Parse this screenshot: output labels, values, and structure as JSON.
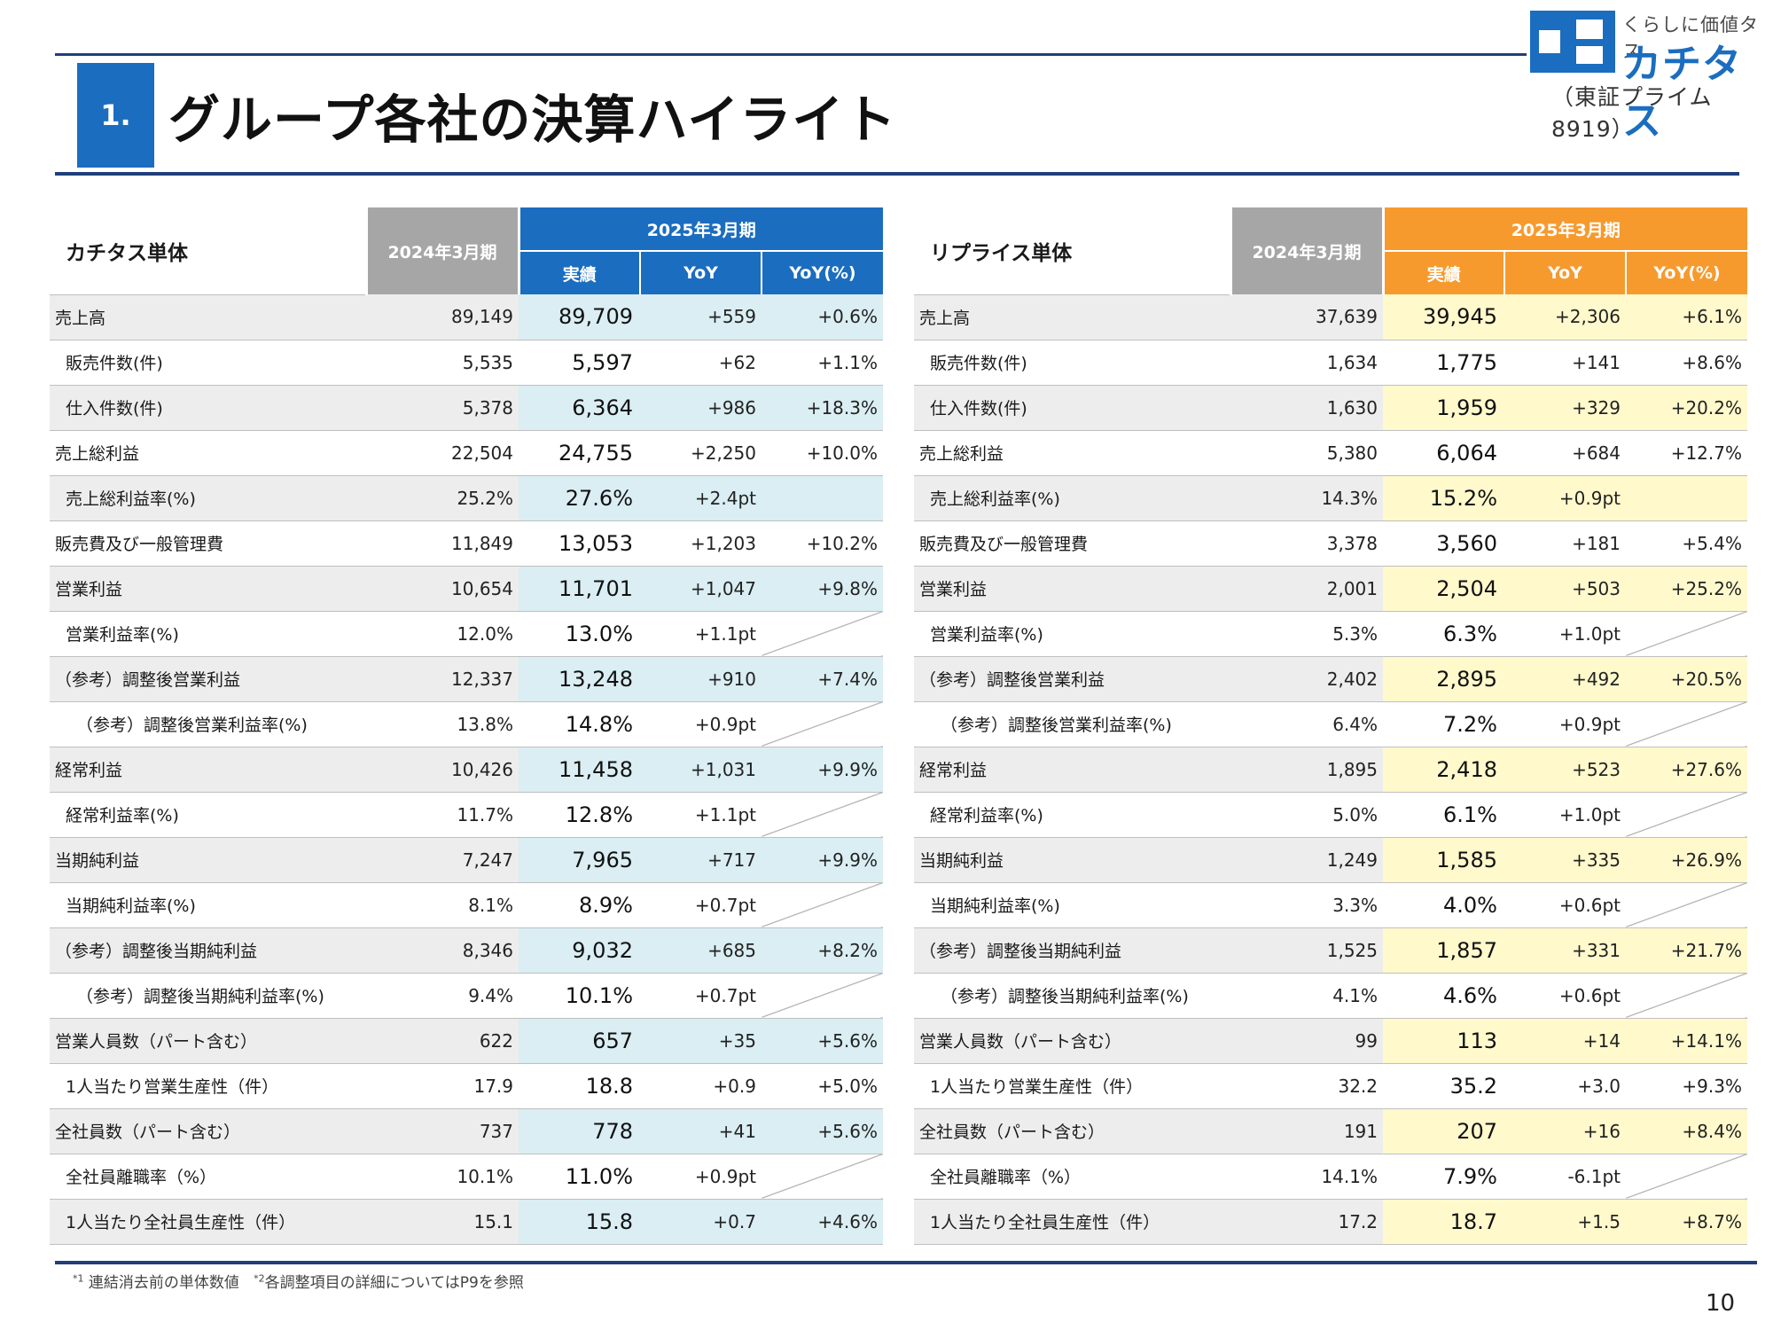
{
  "header": {
    "section_number": "1.",
    "title": "グループ各社の決算ハイライト"
  },
  "logo": {
    "tagline": "くらしに価値タス",
    "name": "カチタス",
    "listing": "（東証プライム8919）",
    "brand_color": "#1b6dbf"
  },
  "colors": {
    "blue_accent": "#1b6dbf",
    "orange_accent": "#f79a2e",
    "prev_header": "#a6a6a6",
    "navy_rule": "#1f3f7a"
  },
  "tables": [
    {
      "name": "カチタス単体",
      "prev_period": "2024年3月期",
      "cur_period": "2025年3月期",
      "cols": {
        "actual": "実績",
        "yoy": "YoY",
        "yoy_pct": "YoY(%)"
      },
      "rows": [
        {
          "label": "売上高",
          "prev": "89,149",
          "cur": "89,709",
          "yoy": "+559",
          "pct": "+0.6%"
        },
        {
          "label": "販売件数(件)",
          "prev": "5,535",
          "cur": "5,597",
          "yoy": "+62",
          "pct": "+1.1%"
        },
        {
          "label": "仕入件数(件)",
          "prev": "5,378",
          "cur": "6,364",
          "yoy": "+986",
          "pct": "+18.3%"
        },
        {
          "label": "売上総利益",
          "prev": "22,504",
          "cur": "24,755",
          "yoy": "+2,250",
          "pct": "+10.0%"
        },
        {
          "label": "売上総利益率(%)",
          "prev": "25.2%",
          "cur": "27.6%",
          "yoy": "+2.4pt",
          "pct": ""
        },
        {
          "label": "販売費及び一般管理費",
          "prev": "11,849",
          "cur": "13,053",
          "yoy": "+1,203",
          "pct": "+10.2%"
        },
        {
          "label": "営業利益",
          "prev": "10,654",
          "cur": "11,701",
          "yoy": "+1,047",
          "pct": "+9.8%"
        },
        {
          "label": "営業利益率(%)",
          "prev": "12.0%",
          "cur": "13.0%",
          "yoy": "+1.1pt",
          "pct": ""
        },
        {
          "label": "（参考）調整後営業利益",
          "prev": "12,337",
          "cur": "13,248",
          "yoy": "+910",
          "pct": "+7.4%"
        },
        {
          "label": "（参考）調整後営業利益率(%)",
          "prev": "13.8%",
          "cur": "14.8%",
          "yoy": "+0.9pt",
          "pct": ""
        },
        {
          "label": "経常利益",
          "prev": "10,426",
          "cur": "11,458",
          "yoy": "+1,031",
          "pct": "+9.9%"
        },
        {
          "label": "経常利益率(%)",
          "prev": "11.7%",
          "cur": "12.8%",
          "yoy": "+1.1pt",
          "pct": ""
        },
        {
          "label": "当期純利益",
          "prev": "7,247",
          "cur": "7,965",
          "yoy": "+717",
          "pct": "+9.9%"
        },
        {
          "label": "当期純利益率(%)",
          "prev": "8.1%",
          "cur": "8.9%",
          "yoy": "+0.7pt",
          "pct": ""
        },
        {
          "label": "（参考）調整後当期純利益",
          "prev": "8,346",
          "cur": "9,032",
          "yoy": "+685",
          "pct": "+8.2%"
        },
        {
          "label": "（参考）調整後当期純利益率(%)",
          "prev": "9.4%",
          "cur": "10.1%",
          "yoy": "+0.7pt",
          "pct": ""
        },
        {
          "label": "営業人員数（パート含む）",
          "prev": "622",
          "cur": "657",
          "yoy": "+35",
          "pct": "+5.6%"
        },
        {
          "label": "1人当たり営業生産性（件）",
          "prev": "17.9",
          "cur": "18.8",
          "yoy": "+0.9",
          "pct": "+5.0%"
        },
        {
          "label": "全社員数（パート含む）",
          "prev": "737",
          "cur": "778",
          "yoy": "+41",
          "pct": "+5.6%"
        },
        {
          "label": "全社員離職率（%）",
          "prev": "10.1%",
          "cur": "11.0%",
          "yoy": "+0.9pt",
          "pct": ""
        },
        {
          "label": "1人当たり全社員生産性（件）",
          "prev": "15.1",
          "cur": "15.8",
          "yoy": "+0.7",
          "pct": "+4.6%"
        }
      ]
    },
    {
      "name": "リプライス単体",
      "prev_period": "2024年3月期",
      "cur_period": "2025年3月期",
      "cols": {
        "actual": "実績",
        "yoy": "YoY",
        "yoy_pct": "YoY(%)"
      },
      "rows": [
        {
          "label": "売上高",
          "prev": "37,639",
          "cur": "39,945",
          "yoy": "+2,306",
          "pct": "+6.1%"
        },
        {
          "label": "販売件数(件)",
          "prev": "1,634",
          "cur": "1,775",
          "yoy": "+141",
          "pct": "+8.6%"
        },
        {
          "label": "仕入件数(件)",
          "prev": "1,630",
          "cur": "1,959",
          "yoy": "+329",
          "pct": "+20.2%"
        },
        {
          "label": "売上総利益",
          "prev": "5,380",
          "cur": "6,064",
          "yoy": "+684",
          "pct": "+12.7%"
        },
        {
          "label": "売上総利益率(%)",
          "prev": "14.3%",
          "cur": "15.2%",
          "yoy": "+0.9pt",
          "pct": ""
        },
        {
          "label": "販売費及び一般管理費",
          "prev": "3,378",
          "cur": "3,560",
          "yoy": "+181",
          "pct": "+5.4%"
        },
        {
          "label": "営業利益",
          "prev": "2,001",
          "cur": "2,504",
          "yoy": "+503",
          "pct": "+25.2%"
        },
        {
          "label": "営業利益率(%)",
          "prev": "5.3%",
          "cur": "6.3%",
          "yoy": "+1.0pt",
          "pct": ""
        },
        {
          "label": "（参考）調整後営業利益",
          "prev": "2,402",
          "cur": "2,895",
          "yoy": "+492",
          "pct": "+20.5%"
        },
        {
          "label": "（参考）調整後営業利益率(%)",
          "prev": "6.4%",
          "cur": "7.2%",
          "yoy": "+0.9pt",
          "pct": ""
        },
        {
          "label": "経常利益",
          "prev": "1,895",
          "cur": "2,418",
          "yoy": "+523",
          "pct": "+27.6%"
        },
        {
          "label": "経常利益率(%)",
          "prev": "5.0%",
          "cur": "6.1%",
          "yoy": "+1.0pt",
          "pct": ""
        },
        {
          "label": "当期純利益",
          "prev": "1,249",
          "cur": "1,585",
          "yoy": "+335",
          "pct": "+26.9%"
        },
        {
          "label": "当期純利益率(%)",
          "prev": "3.3%",
          "cur": "4.0%",
          "yoy": "+0.6pt",
          "pct": ""
        },
        {
          "label": "（参考）調整後当期純利益",
          "prev": "1,525",
          "cur": "1,857",
          "yoy": "+331",
          "pct": "+21.7%"
        },
        {
          "label": "（参考）調整後当期純利益率(%)",
          "prev": "4.1%",
          "cur": "4.6%",
          "yoy": "+0.6pt",
          "pct": ""
        },
        {
          "label": "営業人員数（パート含む）",
          "prev": "99",
          "cur": "113",
          "yoy": "+14",
          "pct": "+14.1%"
        },
        {
          "label": "1人当たり営業生産性（件）",
          "prev": "32.2",
          "cur": "35.2",
          "yoy": "+3.0",
          "pct": "+9.3%"
        },
        {
          "label": "全社員数（パート含む）",
          "prev": "191",
          "cur": "207",
          "yoy": "+16",
          "pct": "+8.4%"
        },
        {
          "label": "全社員離職率（%）",
          "prev": "14.1%",
          "cur": "7.9%",
          "yoy": "-6.1pt",
          "pct": ""
        },
        {
          "label": "1人当たり全社員生産性（件）",
          "prev": "17.2",
          "cur": "18.7",
          "yoy": "+1.5",
          "pct": "+8.7%"
        }
      ]
    }
  ],
  "footnote": {
    "sup1": "*1",
    "text1": "連結消去前の単体数値",
    "sup2": "*2",
    "text2": "各調整項目の詳細についてはP9を参照"
  },
  "page_number": "10"
}
